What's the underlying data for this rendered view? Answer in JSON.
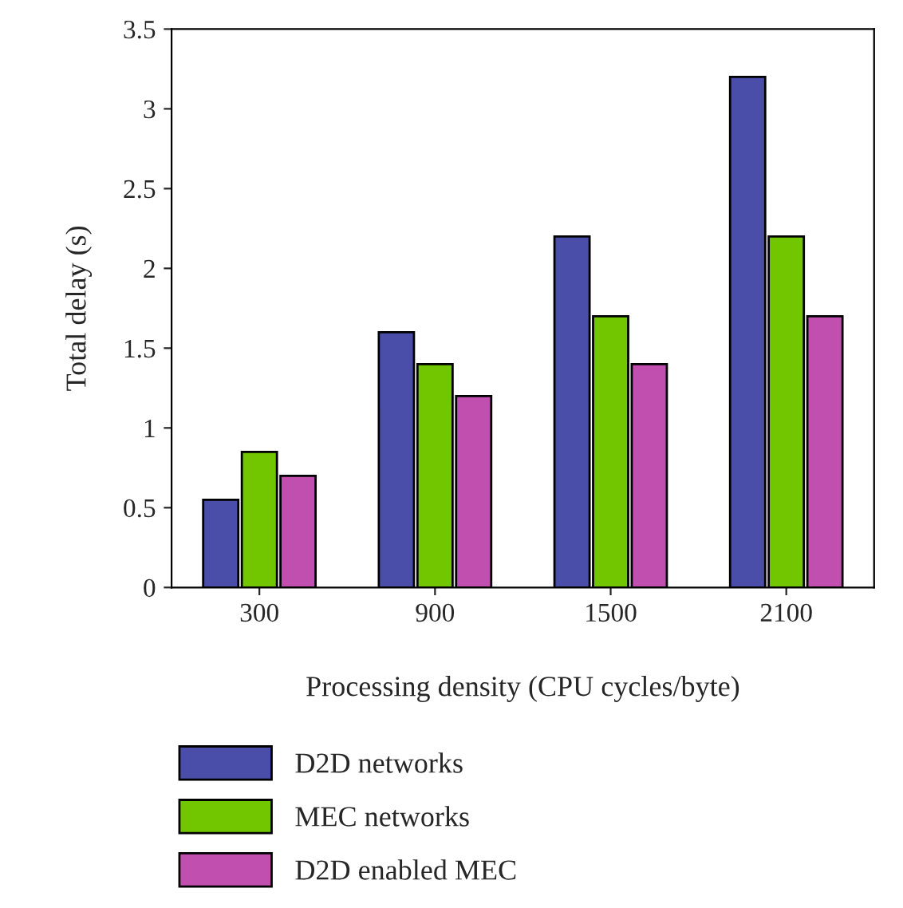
{
  "chart_data": {
    "type": "bar",
    "xlabel": "Processing density (CPU cycles/byte)",
    "ylabel": "Total delay (s)",
    "categories": [
      "300",
      "900",
      "1500",
      "2100"
    ],
    "series": [
      {
        "name": "D2D networks",
        "color": "#4a4ea8",
        "values": [
          0.55,
          1.6,
          2.2,
          3.2
        ]
      },
      {
        "name": "MEC networks",
        "color": "#72c600",
        "values": [
          0.85,
          1.4,
          1.7,
          2.2
        ]
      },
      {
        "name": "D2D enabled MEC",
        "color": "#c14fb0",
        "values": [
          0.7,
          1.2,
          1.4,
          1.7
        ]
      }
    ],
    "ylim": [
      0,
      3.5
    ],
    "yticks": [
      0,
      0.5,
      1,
      1.5,
      2,
      2.5,
      3,
      3.5
    ],
    "grid": false,
    "legend": "bottom left"
  }
}
